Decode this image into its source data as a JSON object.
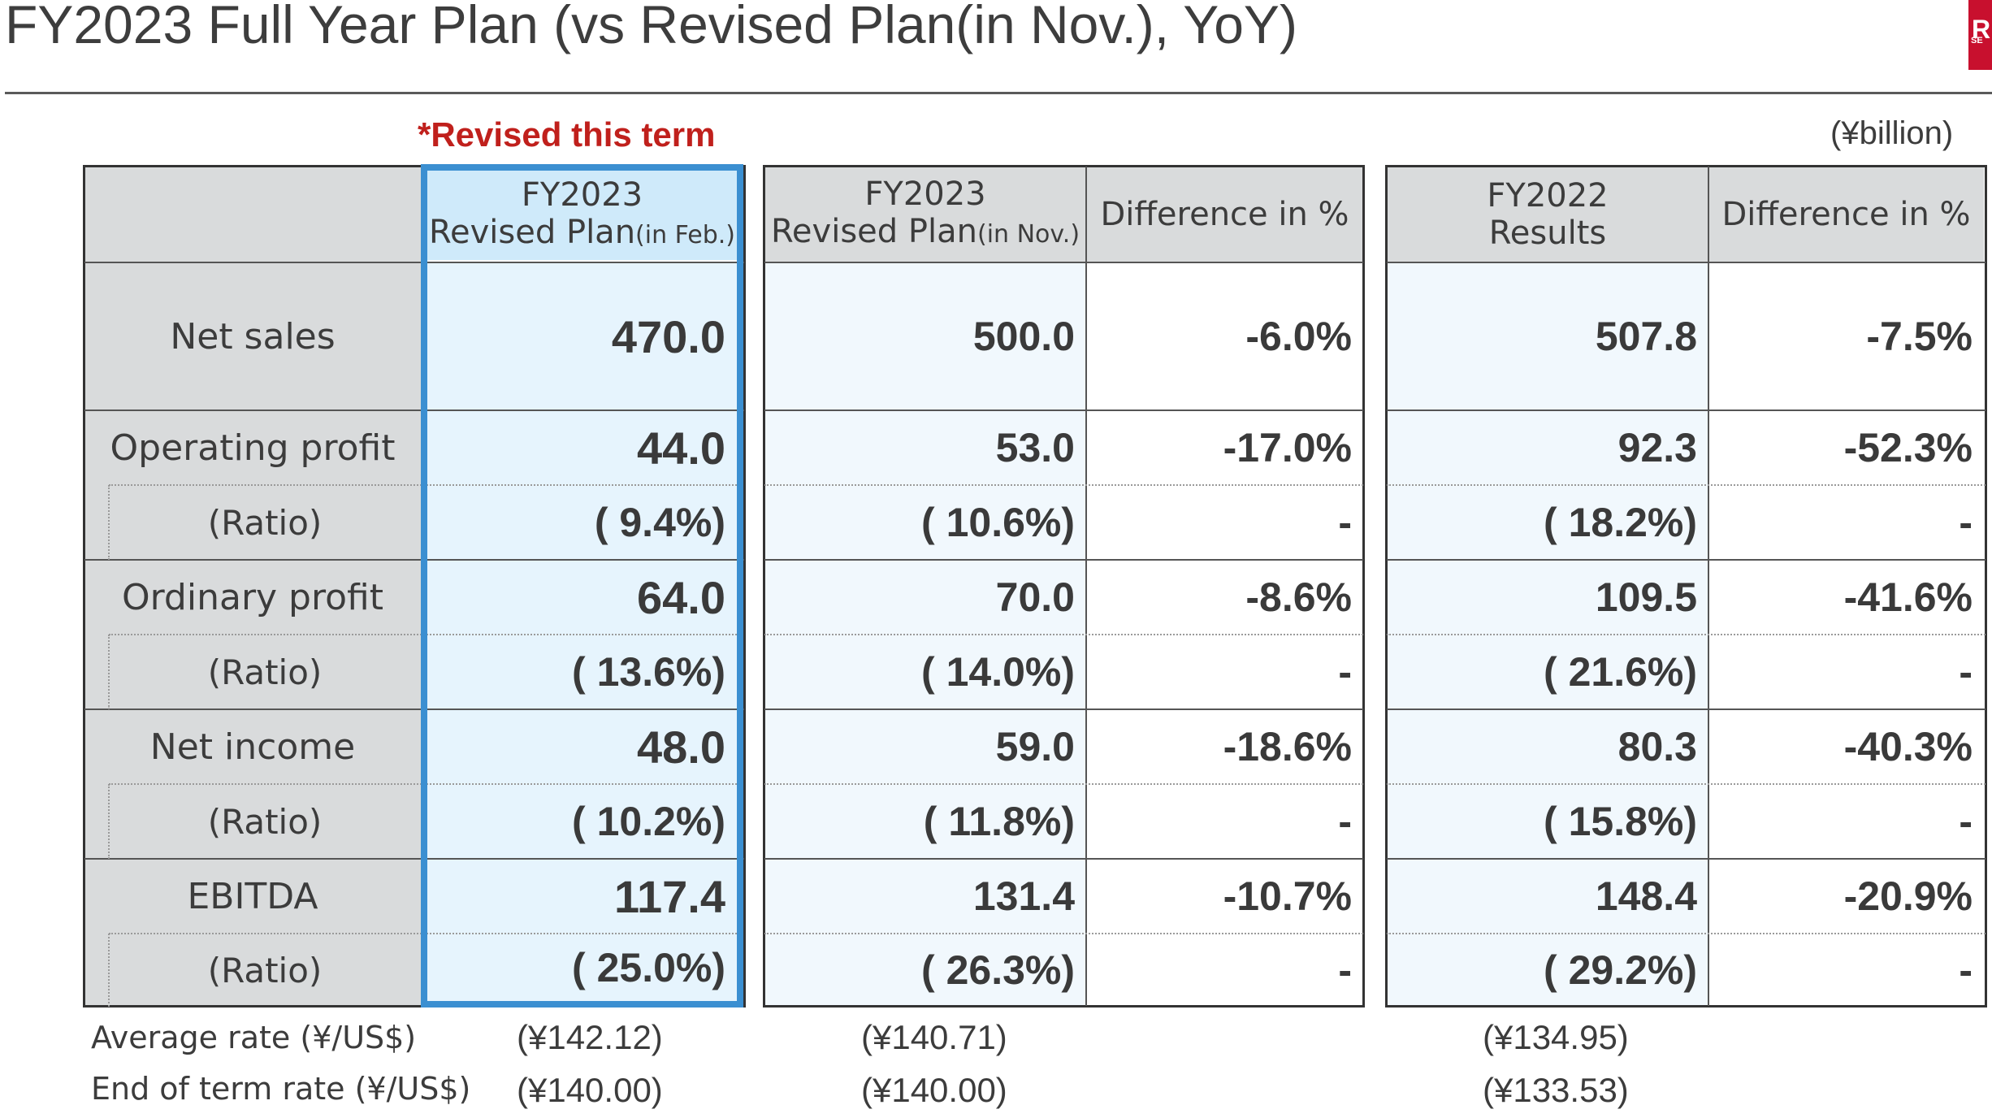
{
  "header": {
    "title": "FY2023 Full Year Plan (vs Revised Plan(in Nov.), YoY)",
    "revised_note": "*Revised this term",
    "unit": "(¥billion)",
    "logo_text": "R",
    "logo_sub": "SE"
  },
  "columns": {
    "feb": {
      "line1": "FY2023",
      "line2": "Revised Plan",
      "line2_small": "(in Feb.)"
    },
    "nov": {
      "line1": "FY2023",
      "line2": "Revised Plan",
      "line2_small": "(in Nov.)"
    },
    "nov_diff": "Difference in %",
    "fy22": {
      "line1": "FY2022",
      "line2": "Results"
    },
    "fy22_diff": "Difference in %"
  },
  "rows": {
    "net_sales": {
      "label": "Net sales",
      "feb": "470.0",
      "nov": "500.0",
      "nov_diff": "-6.0%",
      "fy22": "507.8",
      "fy22_diff": "-7.5%"
    },
    "operating_profit": {
      "label": "Operating profit",
      "feb": "44.0",
      "nov": "53.0",
      "nov_diff": "-17.0%",
      "fy22": "92.3",
      "fy22_diff": "-52.3%"
    },
    "operating_ratio": {
      "label": "(Ratio)",
      "feb": "( 9.4%)",
      "nov": "( 10.6%)",
      "nov_diff": "-",
      "fy22": "( 18.2%)",
      "fy22_diff": "-"
    },
    "ordinary_profit": {
      "label": "Ordinary profit",
      "feb": "64.0",
      "nov": "70.0",
      "nov_diff": "-8.6%",
      "fy22": "109.5",
      "fy22_diff": "-41.6%"
    },
    "ordinary_ratio": {
      "label": "(Ratio)",
      "feb": "( 13.6%)",
      "nov": "( 14.0%)",
      "nov_diff": "-",
      "fy22": "( 21.6%)",
      "fy22_diff": "-"
    },
    "net_income": {
      "label": "Net income",
      "feb": "48.0",
      "nov": "59.0",
      "nov_diff": "-18.6%",
      "fy22": "80.3",
      "fy22_diff": "-40.3%"
    },
    "net_income_ratio": {
      "label": "(Ratio)",
      "feb": "( 10.2%)",
      "nov": "( 11.8%)",
      "nov_diff": "-",
      "fy22": "( 15.8%)",
      "fy22_diff": "-"
    },
    "ebitda": {
      "label": "EBITDA",
      "feb": "117.4",
      "nov": "131.4",
      "nov_diff": "-10.7%",
      "fy22": "148.4",
      "fy22_diff": "-20.9%"
    },
    "ebitda_ratio": {
      "label": "(Ratio)",
      "feb": "( 25.0%)",
      "nov": "( 26.3%)",
      "nov_diff": "-",
      "fy22": "( 29.2%)",
      "fy22_diff": "-"
    }
  },
  "footer": {
    "avg_label": "Average rate (¥/US$)",
    "avg_feb": "(¥142.12)",
    "avg_nov": "(¥140.71)",
    "avg_fy22": "(¥134.95)",
    "end_label": "End of term rate (¥/US$)",
    "end_feb": "(¥140.00)",
    "end_nov": "(¥140.00)",
    "end_fy22": "(¥133.53)"
  }
}
